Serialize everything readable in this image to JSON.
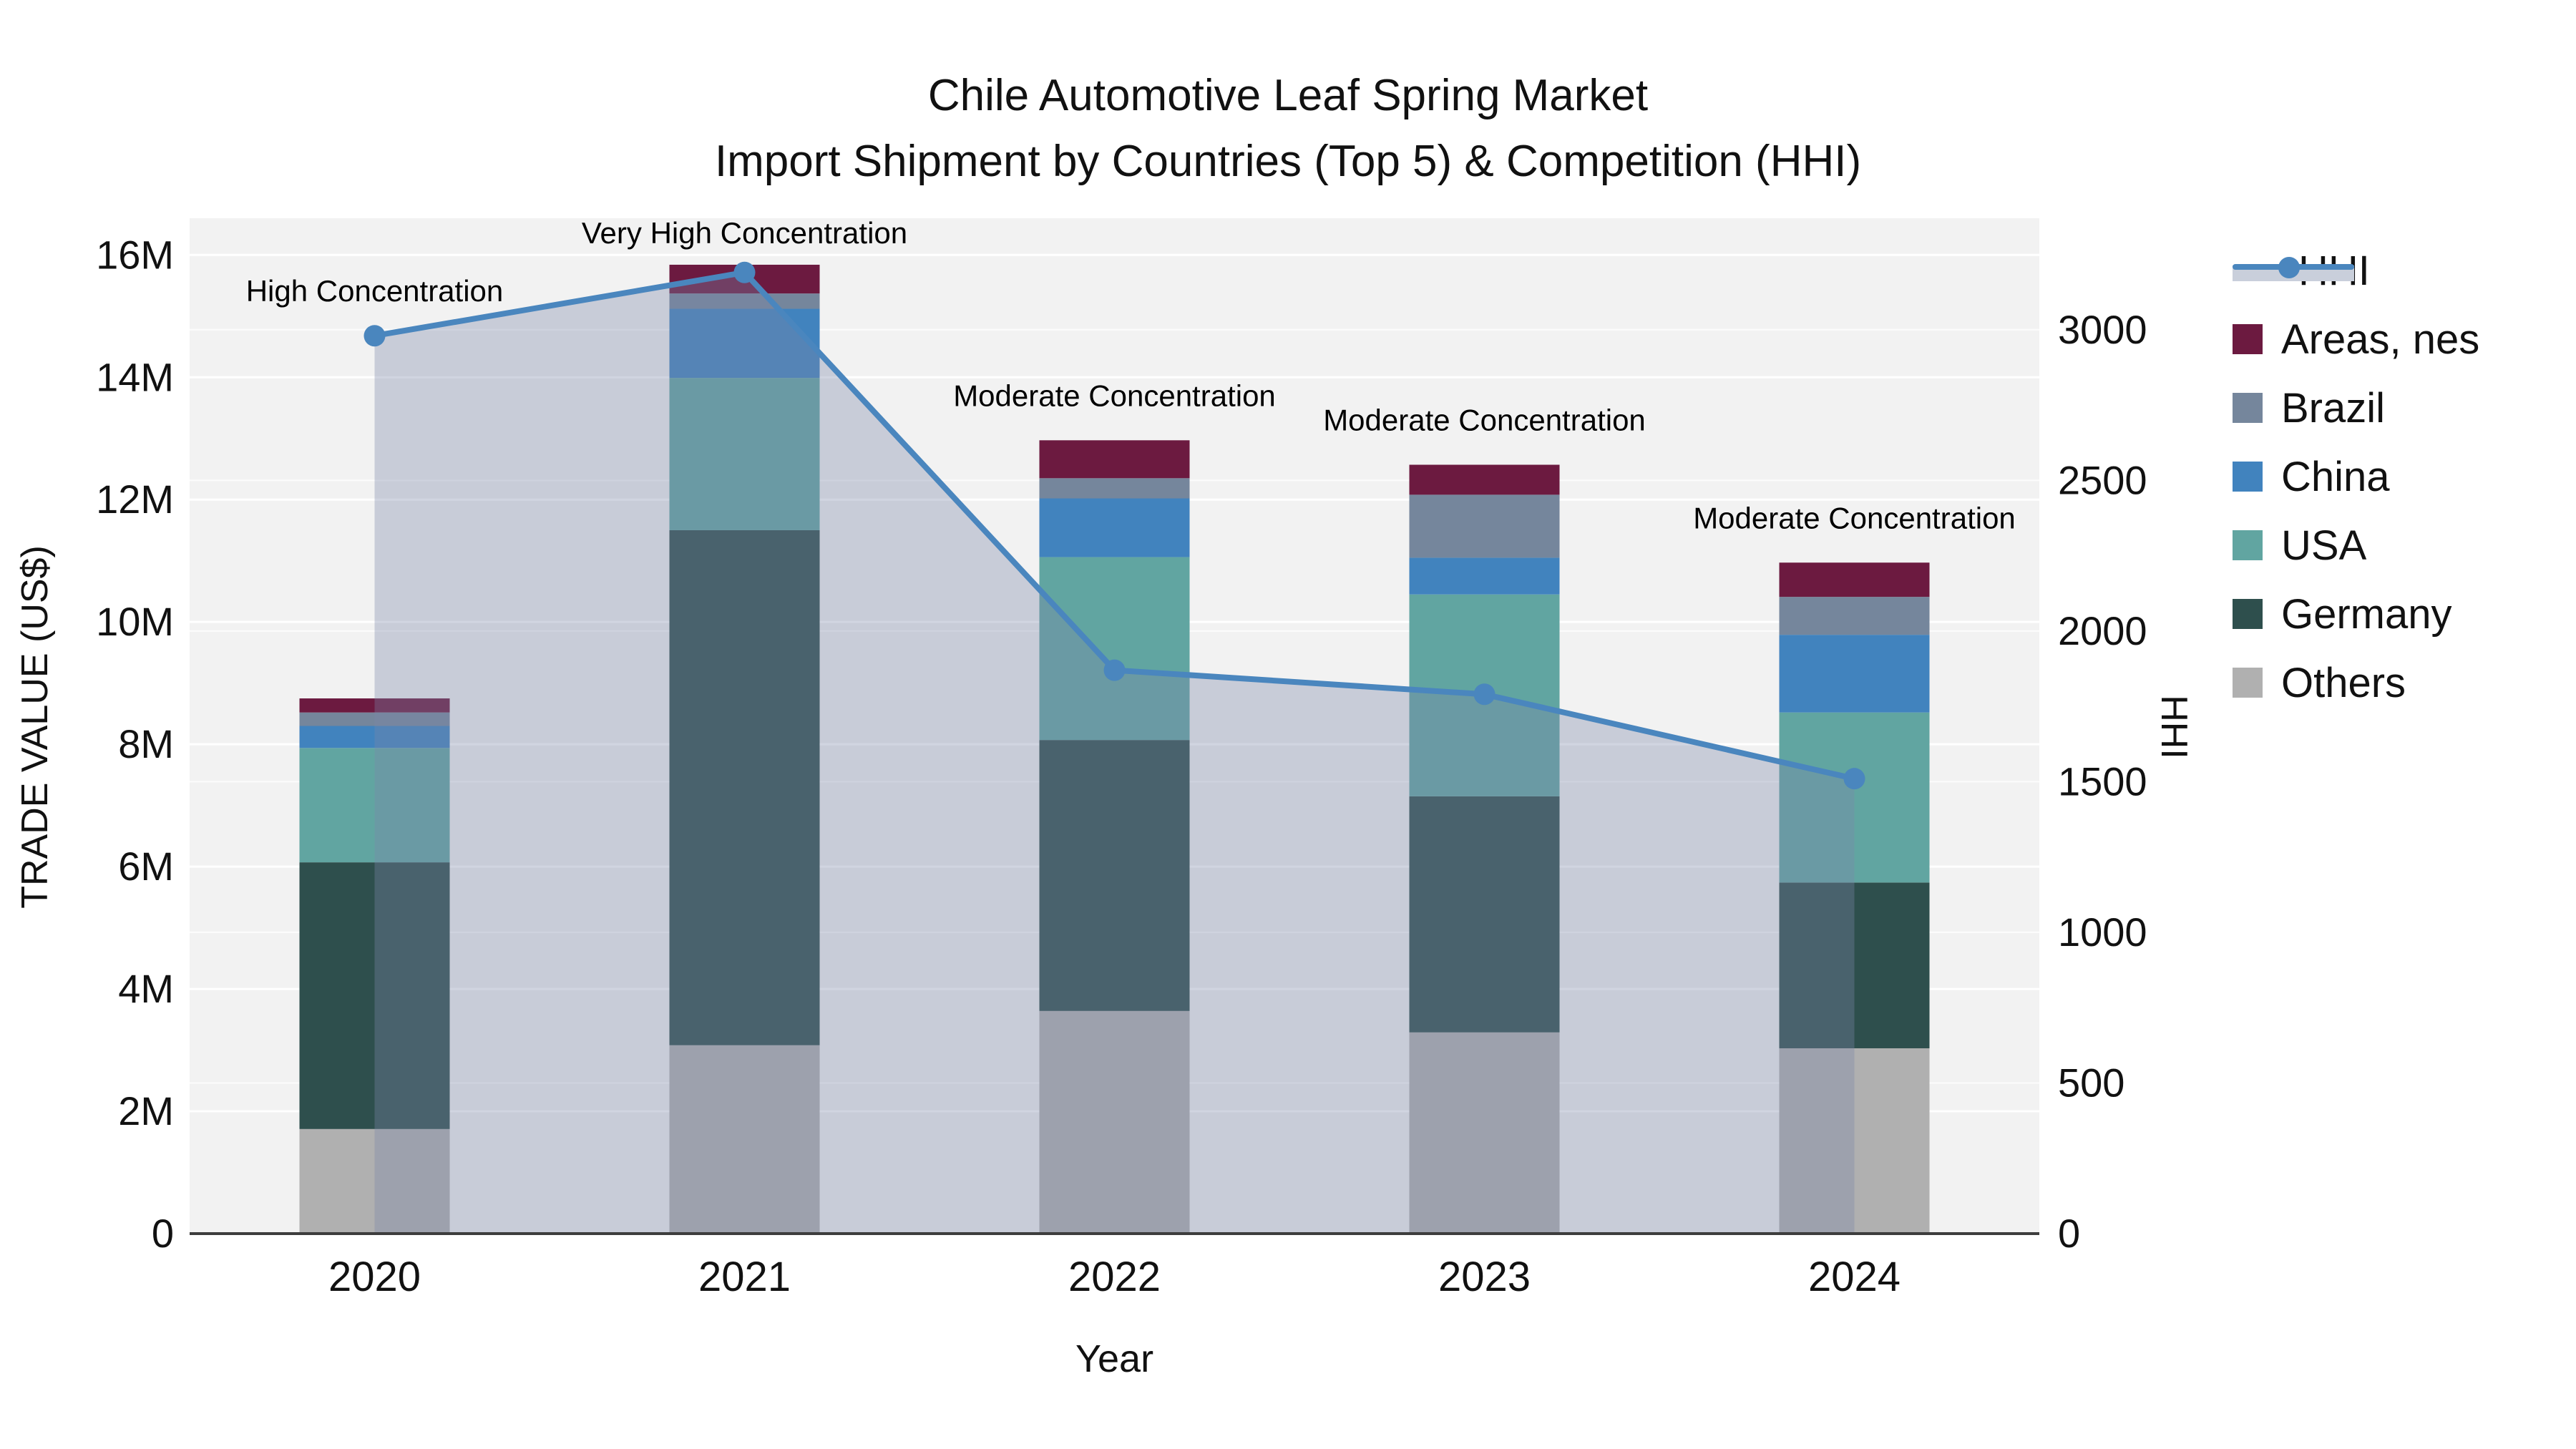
{
  "title": {
    "line1": "Chile Automotive Leaf Spring Market",
    "line2": "Import Shipment by Countries (Top 5) & Competition (HHI)"
  },
  "axes": {
    "x_title": "Year",
    "y_left_title": "TRADE VALUE (US$)",
    "y_right_title": "HHI",
    "y_left_ticks": [
      "0",
      "2M",
      "4M",
      "6M",
      "8M",
      "10M",
      "12M",
      "14M",
      "16M"
    ],
    "y_right_ticks": [
      "0",
      "500",
      "1000",
      "1500",
      "2000",
      "2500",
      "3000"
    ]
  },
  "legend": [
    {
      "label": "HHI",
      "type": "line",
      "color": "#4a86be",
      "band": "#c9cfdb"
    },
    {
      "label": "Areas, nes",
      "type": "box",
      "color": "#6c1a40"
    },
    {
      "label": "Brazil",
      "type": "box",
      "color": "#75869c"
    },
    {
      "label": "China",
      "type": "box",
      "color": "#4183be"
    },
    {
      "label": "USA",
      "type": "box",
      "color": "#61a5a1"
    },
    {
      "label": "Germany",
      "type": "box",
      "color": "#2e4f4d"
    },
    {
      "label": "Others",
      "type": "box",
      "color": "#b0b0b0"
    }
  ],
  "chart_data": {
    "type": "combo_stacked_bar_line",
    "title": "Chile Automotive Leaf Spring Market — Import Shipment by Countries (Top 5) & Competition (HHI)",
    "categories": [
      "2020",
      "2021",
      "2022",
      "2023",
      "2024"
    ],
    "bar_value_unit": "million US$",
    "series": [
      {
        "name": "Others",
        "color": "#b0b0b0",
        "values": [
          1.71,
          3.08,
          3.64,
          3.29,
          3.03
        ]
      },
      {
        "name": "Germany",
        "color": "#2e4f4d",
        "values": [
          4.36,
          8.42,
          4.43,
          3.86,
          2.71
        ]
      },
      {
        "name": "USA",
        "color": "#61a5a1",
        "values": [
          1.87,
          2.49,
          2.99,
          3.3,
          2.78
        ]
      },
      {
        "name": "China",
        "color": "#4183be",
        "values": [
          0.36,
          1.13,
          0.96,
          0.6,
          1.27
        ]
      },
      {
        "name": "Brazil",
        "color": "#75869c",
        "values": [
          0.22,
          0.25,
          0.33,
          1.03,
          0.62
        ]
      },
      {
        "name": "Areas, nes",
        "color": "#6c1a40",
        "values": [
          0.23,
          0.47,
          0.62,
          0.49,
          0.56
        ]
      }
    ],
    "bar_totals": [
      8.75,
      15.84,
      12.97,
      12.57,
      10.97
    ],
    "line_series": {
      "name": "HHI",
      "color": "#4a86be",
      "fill": "rgba(122,136,168,0.35)",
      "values": [
        2980,
        3190,
        1870,
        1790,
        1510
      ]
    },
    "annotations": [
      {
        "category": "2020",
        "text": "High Concentration"
      },
      {
        "category": "2021",
        "text": "Very High Concentration"
      },
      {
        "category": "2022",
        "text": "Moderate Concentration"
      },
      {
        "category": "2023",
        "text": "Moderate Concentration"
      },
      {
        "category": "2024",
        "text": "Moderate Concentration"
      }
    ],
    "xlabel": "Year",
    "ylabel_left": "TRADE VALUE (US$)",
    "ylabel_right": "HHI",
    "y_left_range_millions": [
      0,
      16.6
    ],
    "y_right_range": [
      0,
      3370
    ],
    "grid": true,
    "legend_position": "right",
    "plot_background": "#f2f2f2"
  }
}
